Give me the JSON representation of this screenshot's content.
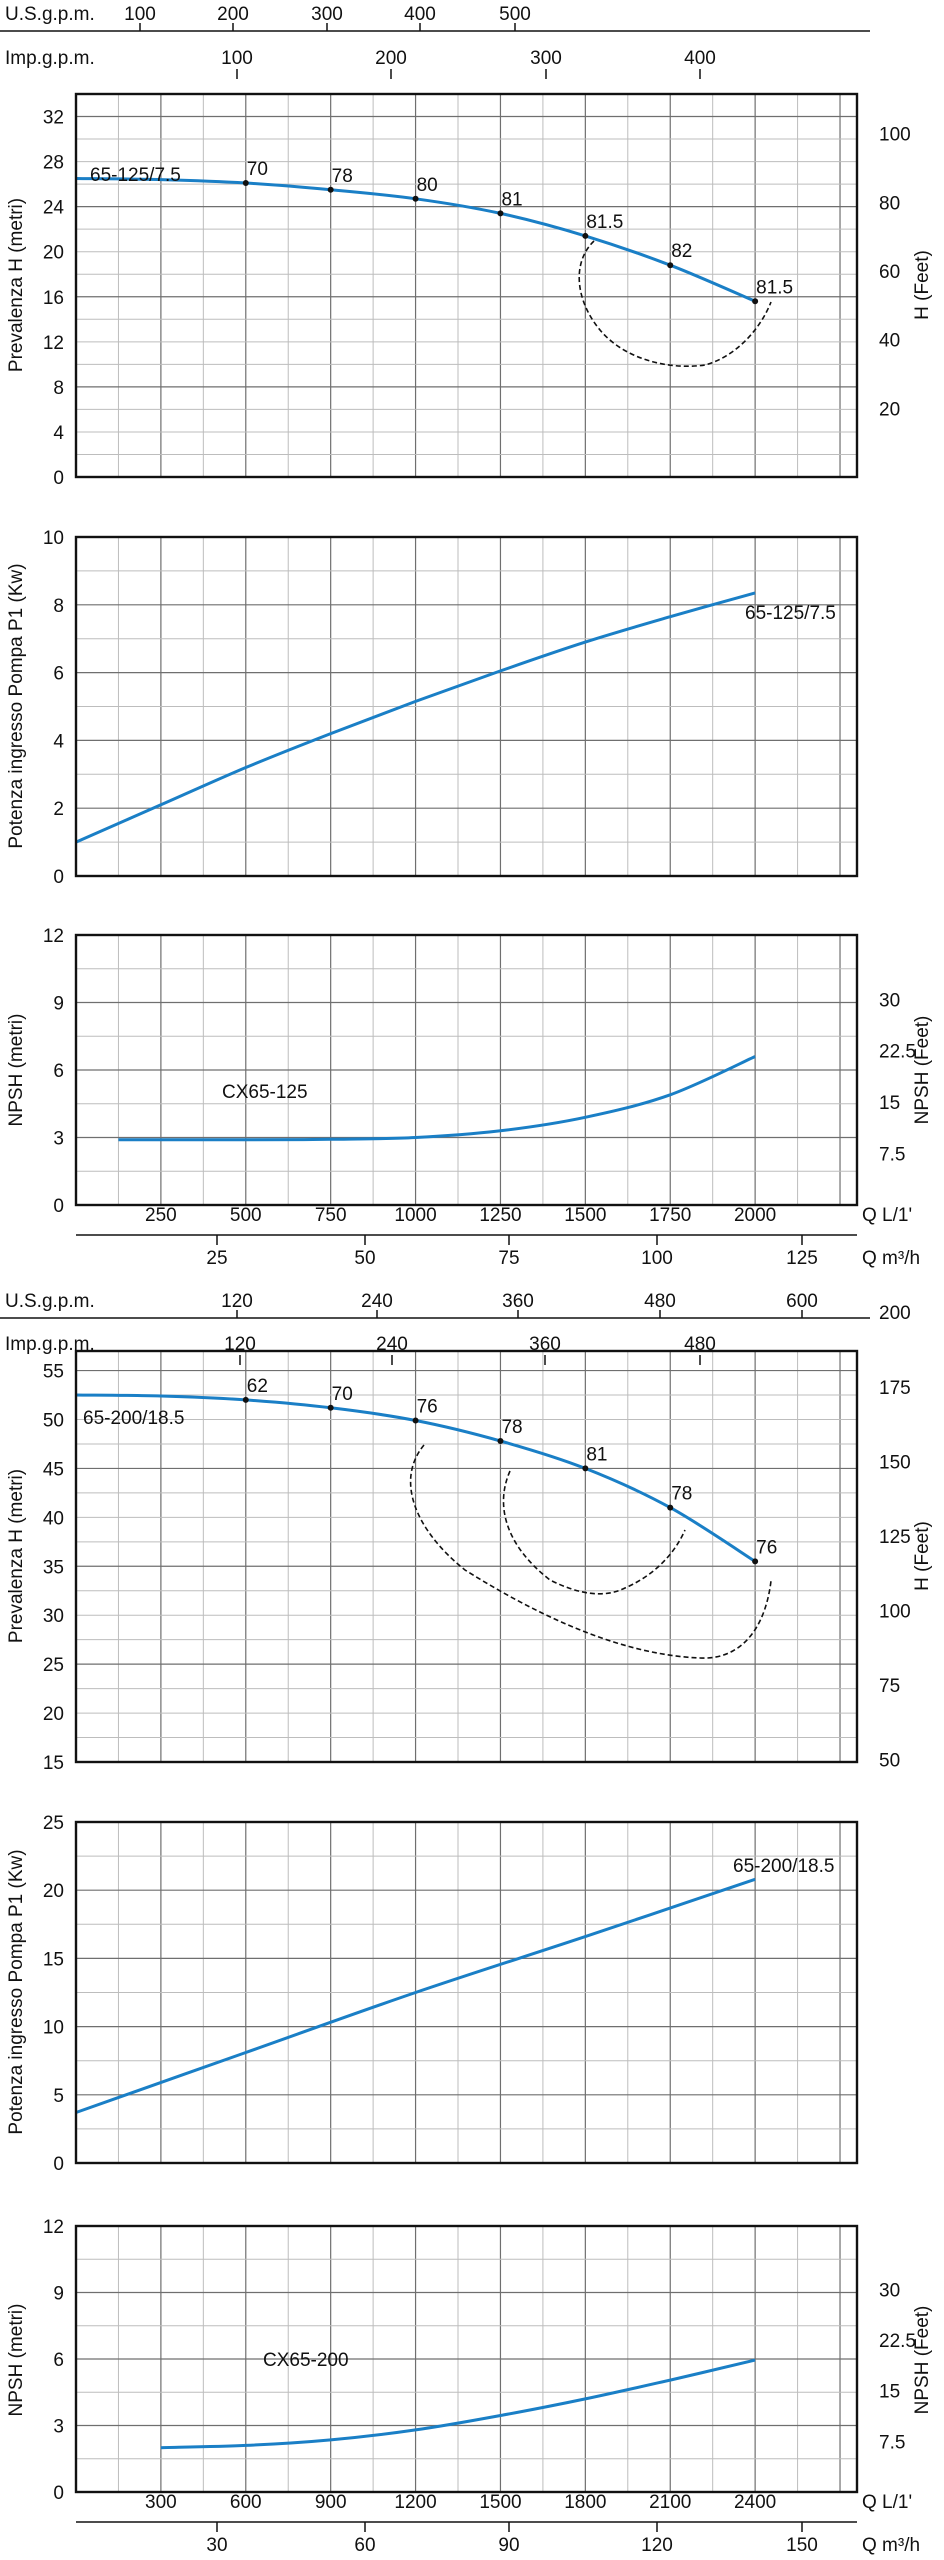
{
  "colors": {
    "curve": "#1a7fc6",
    "iso": "#111111",
    "grid_major": "#6f6f6f",
    "grid_minor": "#bdbdbd"
  },
  "chart_data": [
    {
      "type": "line",
      "panel": "head",
      "series_label": "65-125/7.5",
      "ylabel": "Prevalenza H (metri)",
      "ylabel_right": "H (Feet)",
      "top_axis_1": {
        "label": "U.S.g.p.m.",
        "ticks": [
          "100",
          "200",
          "300",
          "400",
          "500"
        ]
      },
      "top_axis_2": {
        "label": "Imp.g.p.m.",
        "ticks": [
          "100",
          "200",
          "300",
          "400"
        ]
      },
      "xlim": [
        0,
        2300
      ],
      "ylim": [
        0,
        34
      ],
      "y_ticks": [
        "0",
        "4",
        "8",
        "12",
        "16",
        "20",
        "24",
        "28",
        "32"
      ],
      "y_right_ticks": [
        "20",
        "40",
        "60",
        "80",
        "100"
      ],
      "x": [
        0,
        250,
        500,
        750,
        1000,
        1250,
        1500,
        1750,
        2000
      ],
      "y": [
        26.5,
        26.4,
        26.1,
        25.5,
        24.7,
        23.4,
        21.4,
        18.8,
        15.6
      ],
      "efficiency_points": [
        {
          "q": 500,
          "label": "70"
        },
        {
          "q": 750,
          "label": "78"
        },
        {
          "q": 1000,
          "label": "80"
        },
        {
          "q": 1250,
          "label": "81"
        },
        {
          "q": 1500,
          "label": "81.5"
        },
        {
          "q": 1750,
          "label": "82"
        },
        {
          "q": 2000,
          "label": "81.5"
        }
      ]
    },
    {
      "type": "line",
      "panel": "power",
      "series_label": "65-125/7.5",
      "ylabel": "Potenza ingresso Pompa P1 (Kw)",
      "xlim": [
        0,
        2300
      ],
      "ylim": [
        0,
        10
      ],
      "y_ticks": [
        "0",
        "2",
        "4",
        "6",
        "8",
        "10"
      ],
      "x": [
        0,
        250,
        500,
        750,
        1000,
        1250,
        1500,
        1750,
        2000
      ],
      "y": [
        1.0,
        2.1,
        3.2,
        4.2,
        5.15,
        6.05,
        6.9,
        7.65,
        8.35
      ]
    },
    {
      "type": "line",
      "panel": "npsh",
      "series_label": "CX65-125",
      "ylabel": "NPSH (metri)",
      "ylabel_right": "NPSH (Feet)",
      "xlabel": "Q L/1'",
      "xlabel2": "Q m³/h",
      "xlim": [
        0,
        2300
      ],
      "ylim": [
        0,
        12
      ],
      "y_ticks": [
        "0",
        "3",
        "6",
        "9",
        "12"
      ],
      "y_right_ticks": [
        "7.5",
        "15",
        "22.5",
        "30"
      ],
      "x_ticks": [
        "250",
        "500",
        "750",
        "1000",
        "1250",
        "1500",
        "1750",
        "2000"
      ],
      "x2_ticks": [
        "25",
        "50",
        "75",
        "100",
        "125"
      ],
      "x": [
        125,
        500,
        750,
        1000,
        1250,
        1500,
        1750,
        2000
      ],
      "y": [
        2.9,
        2.9,
        2.92,
        3.0,
        3.3,
        3.9,
        4.9,
        6.6
      ]
    },
    {
      "type": "line",
      "panel": "head",
      "series_label": "65-200/18.5",
      "ylabel": "Prevalenza H (metri)",
      "ylabel_right": "H (Feet)",
      "top_axis_1": {
        "label": "U.S.g.p.m.",
        "ticks": [
          "120",
          "240",
          "360",
          "480",
          "600"
        ]
      },
      "top_axis_2": {
        "label": "Imp.g.p.m.",
        "ticks": [
          "120",
          "240",
          "360",
          "480"
        ]
      },
      "xlim": [
        0,
        2760
      ],
      "ylim": [
        15,
        57
      ],
      "y_ticks": [
        "15",
        "20",
        "25",
        "30",
        "35",
        "40",
        "45",
        "50",
        "55"
      ],
      "y_right_ticks": [
        "50",
        "75",
        "100",
        "125",
        "150",
        "175",
        "200"
      ],
      "x": [
        0,
        300,
        600,
        900,
        1200,
        1500,
        1800,
        2100,
        2400
      ],
      "y": [
        52.5,
        52.4,
        52.0,
        51.2,
        49.9,
        47.8,
        45.0,
        41.0,
        35.5
      ],
      "efficiency_points": [
        {
          "q": 600,
          "label": "62"
        },
        {
          "q": 900,
          "label": "70"
        },
        {
          "q": 1200,
          "label": "76"
        },
        {
          "q": 1500,
          "label": "78"
        },
        {
          "q": 1800,
          "label": "81"
        },
        {
          "q": 2100,
          "label": "78"
        },
        {
          "q": 2400,
          "label": "76"
        }
      ]
    },
    {
      "type": "line",
      "panel": "power",
      "series_label": "65-200/18.5",
      "ylabel": "Potenza ingresso Pompa P1 (Kw)",
      "xlim": [
        0,
        2760
      ],
      "ylim": [
        0,
        25
      ],
      "y_ticks": [
        "0",
        "5",
        "10",
        "15",
        "20",
        "25"
      ],
      "x": [
        0,
        600,
        1200,
        1800,
        2400
      ],
      "y": [
        3.7,
        8.1,
        12.5,
        16.6,
        20.8
      ]
    },
    {
      "type": "line",
      "panel": "npsh",
      "series_label": "CX65-200",
      "ylabel": "NPSH (metri)",
      "ylabel_right": "NPSH (Feet)",
      "xlabel": "Q L/1'",
      "xlabel2": "Q m³/h",
      "xlim": [
        0,
        2760
      ],
      "ylim": [
        0,
        12
      ],
      "y_ticks": [
        "0",
        "3",
        "6",
        "9",
        "12"
      ],
      "y_right_ticks": [
        "7.5",
        "15",
        "22.5",
        "30"
      ],
      "x_ticks": [
        "300",
        "600",
        "900",
        "1200",
        "1500",
        "1800",
        "2100",
        "2400"
      ],
      "x2_ticks": [
        "30",
        "60",
        "90",
        "120",
        "150"
      ],
      "x": [
        300,
        600,
        900,
        1200,
        1500,
        1800,
        2100,
        2400
      ],
      "y": [
        2.0,
        2.1,
        2.35,
        2.8,
        3.45,
        4.2,
        5.05,
        5.95
      ]
    }
  ]
}
